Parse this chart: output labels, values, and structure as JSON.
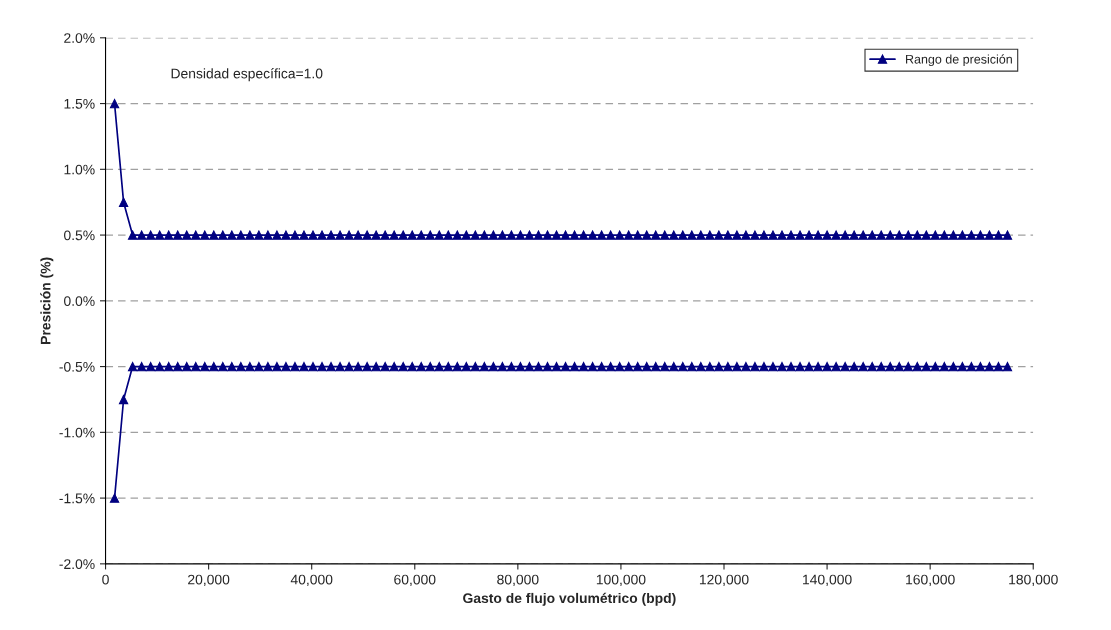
{
  "chart_data": {
    "type": "line",
    "xlabel": "Gasto de flujo volumétrico (bpd)",
    "ylabel": "Presición (%)",
    "annotations": [
      "Densidad específica=1.0"
    ],
    "x": [
      1750,
      3500,
      5250,
      7000,
      8750,
      10500,
      12250,
      14000,
      15750,
      17500,
      19250,
      21000,
      22750,
      24500,
      26250,
      28000,
      29750,
      31500,
      33250,
      35000,
      36750,
      38500,
      40250,
      42000,
      43750,
      45500,
      47250,
      49000,
      50750,
      52500,
      54250,
      56000,
      57750,
      59500,
      61250,
      63000,
      64750,
      66500,
      68250,
      70000,
      71750,
      73500,
      75250,
      77000,
      78750,
      80500,
      82250,
      84000,
      85750,
      87500,
      89250,
      91000,
      92750,
      94500,
      96250,
      98000,
      99750,
      101500,
      103250,
      105000,
      106750,
      108500,
      110250,
      112000,
      113750,
      115500,
      117250,
      119000,
      120750,
      122500,
      124250,
      126000,
      127750,
      129500,
      131250,
      133000,
      134750,
      136500,
      138250,
      140000,
      141750,
      143500,
      145250,
      147000,
      148750,
      150500,
      152250,
      154000,
      155750,
      157500,
      159250,
      161000,
      162750,
      164500,
      166250,
      168000,
      169750,
      171500,
      173250,
      175000
    ],
    "series": [
      {
        "name": "Rango de presición",
        "color": "#000080",
        "values": [
          1.5,
          0.75,
          0.5,
          0.5,
          0.5,
          0.5,
          0.5,
          0.5,
          0.5,
          0.5,
          0.5,
          0.5,
          0.5,
          0.5,
          0.5,
          0.5,
          0.5,
          0.5,
          0.5,
          0.5,
          0.5,
          0.5,
          0.5,
          0.5,
          0.5,
          0.5,
          0.5,
          0.5,
          0.5,
          0.5,
          0.5,
          0.5,
          0.5,
          0.5,
          0.5,
          0.5,
          0.5,
          0.5,
          0.5,
          0.5,
          0.5,
          0.5,
          0.5,
          0.5,
          0.5,
          0.5,
          0.5,
          0.5,
          0.5,
          0.5,
          0.5,
          0.5,
          0.5,
          0.5,
          0.5,
          0.5,
          0.5,
          0.5,
          0.5,
          0.5,
          0.5,
          0.5,
          0.5,
          0.5,
          0.5,
          0.5,
          0.5,
          0.5,
          0.5,
          0.5,
          0.5,
          0.5,
          0.5,
          0.5,
          0.5,
          0.5,
          0.5,
          0.5,
          0.5,
          0.5,
          0.5,
          0.5,
          0.5,
          0.5,
          0.5,
          0.5,
          0.5,
          0.5,
          0.5,
          0.5,
          0.5,
          0.5,
          0.5,
          0.5,
          0.5,
          0.5,
          0.5,
          0.5,
          0.5,
          0.5
        ]
      },
      {
        "color": "#000080",
        "values": [
          -1.5,
          -0.75,
          -0.5,
          -0.5,
          -0.5,
          -0.5,
          -0.5,
          -0.5,
          -0.5,
          -0.5,
          -0.5,
          -0.5,
          -0.5,
          -0.5,
          -0.5,
          -0.5,
          -0.5,
          -0.5,
          -0.5,
          -0.5,
          -0.5,
          -0.5,
          -0.5,
          -0.5,
          -0.5,
          -0.5,
          -0.5,
          -0.5,
          -0.5,
          -0.5,
          -0.5,
          -0.5,
          -0.5,
          -0.5,
          -0.5,
          -0.5,
          -0.5,
          -0.5,
          -0.5,
          -0.5,
          -0.5,
          -0.5,
          -0.5,
          -0.5,
          -0.5,
          -0.5,
          -0.5,
          -0.5,
          -0.5,
          -0.5,
          -0.5,
          -0.5,
          -0.5,
          -0.5,
          -0.5,
          -0.5,
          -0.5,
          -0.5,
          -0.5,
          -0.5,
          -0.5,
          -0.5,
          -0.5,
          -0.5,
          -0.5,
          -0.5,
          -0.5,
          -0.5,
          -0.5,
          -0.5,
          -0.5,
          -0.5,
          -0.5,
          -0.5,
          -0.5,
          -0.5,
          -0.5,
          -0.5,
          -0.5,
          -0.5,
          -0.5,
          -0.5,
          -0.5,
          -0.5,
          -0.5,
          -0.5,
          -0.5,
          -0.5,
          -0.5,
          -0.5,
          -0.5,
          -0.5,
          -0.5,
          -0.5,
          -0.5,
          -0.5,
          -0.5,
          -0.5,
          -0.5,
          -0.5
        ]
      }
    ],
    "xlim": [
      0,
      180000
    ],
    "xticks": [
      {
        "value": 0,
        "label": "0"
      },
      {
        "value": 20000,
        "label": "20,000"
      },
      {
        "value": 40000,
        "label": "40,000"
      },
      {
        "value": 60000,
        "label": "60,000"
      },
      {
        "value": 80000,
        "label": "80,000"
      },
      {
        "value": 100000,
        "label": "100,000"
      },
      {
        "value": 120000,
        "label": "120,000"
      },
      {
        "value": 140000,
        "label": "140,000"
      },
      {
        "value": 160000,
        "label": "160,000"
      },
      {
        "value": 180000,
        "label": "180,000"
      }
    ],
    "ylim": [
      -2.0,
      2.0
    ],
    "yticks": [
      {
        "value": -2.0,
        "label": "-2.0%"
      },
      {
        "value": -1.5,
        "label": "-1.5%"
      },
      {
        "value": -1.0,
        "label": "-1.0%"
      },
      {
        "value": -0.5,
        "label": "-0.5%"
      },
      {
        "value": 0.0,
        "label": "0.0%"
      },
      {
        "value": 0.5,
        "label": "0.5%"
      },
      {
        "value": 1.0,
        "label": "1.0%"
      },
      {
        "value": 1.5,
        "label": "1.5%"
      },
      {
        "value": 2.0,
        "label": "2.0%"
      }
    ],
    "grid": "y",
    "legend": "top right",
    "marker": "triangle",
    "line_style": "solid"
  }
}
